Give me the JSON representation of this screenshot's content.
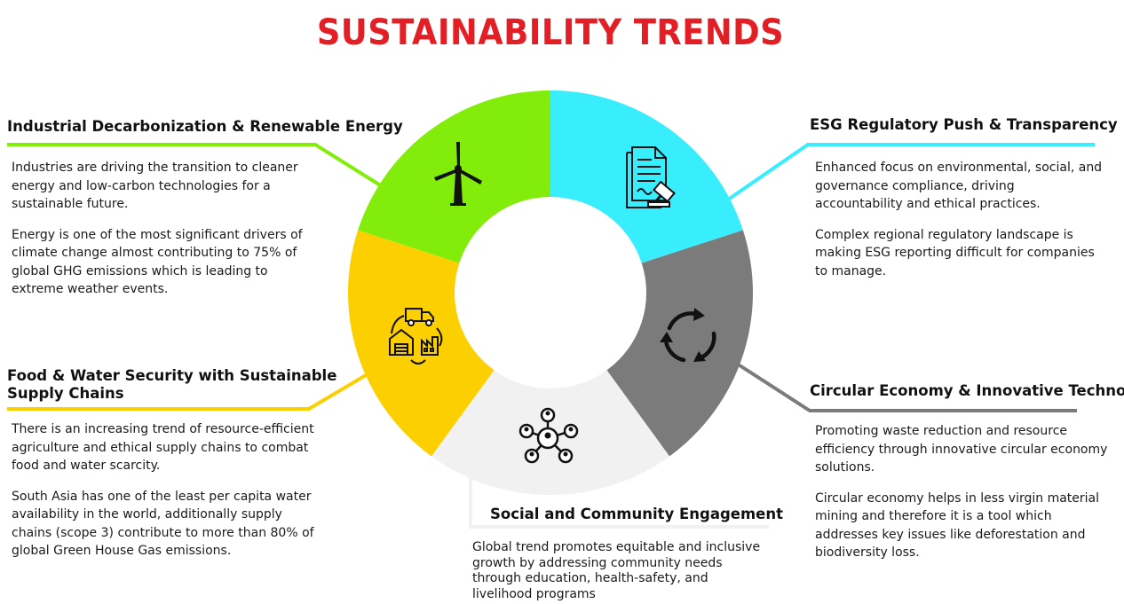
{
  "title": "SUSTAINABILITY TRENDS",
  "colors": {
    "title": "#e31e24",
    "industrial": "#82ec0a",
    "esg": "#38eefc",
    "circular": "#7b7b7b",
    "social": "#f1f1f1",
    "food": "#fcd000"
  },
  "sections": {
    "industrial": {
      "heading": "Industrial Decarbonization & Renewable Energy",
      "icon": "wind-turbine-icon",
      "paragraphs": [
        "Industries are driving the transition to cleaner energy and low-carbon technologies for a sustainable future.",
        "Energy is one of the most significant drivers of climate change almost contributing to 75% of global GHG emissions which is leading to extreme weather events."
      ]
    },
    "esg": {
      "heading": "ESG Regulatory Push & Transparency",
      "icon": "regulation-document-gavel-icon",
      "paragraphs": [
        "Enhanced focus on environmental, social, and governance compliance, driving accountability and ethical practices.",
        "Complex regional regulatory landscape is making ESG reporting difficult  for companies to manage."
      ]
    },
    "circular": {
      "heading": "Circular Economy & Innovative Technology",
      "icon": "recycle-arrows-icon",
      "paragraphs": [
        "Promoting waste reduction and resource efficiency through innovative circular economy solutions.",
        "Circular economy helps in less virgin material mining and therefore it is a tool which addresses key issues like deforestation and biodiversity loss."
      ]
    },
    "social": {
      "heading": "Social and Community Engagement",
      "icon": "community-network-icon",
      "paragraphs": [
        "Global trend promotes equitable and inclusive growth by addressing community needs through education, health-safety, and livelihood programs"
      ]
    },
    "food": {
      "heading_line1": "Food & Water Security with Sustainable",
      "heading_line2": "Supply Chains",
      "icon": "supply-chain-icon",
      "paragraphs": [
        "There is an increasing trend of resource-efficient agriculture and ethical supply chains to combat food and water scarcity.",
        "South Asia has one of the least per capita water availability in the world, additionally supply chains (scope 3) contribute to more than 80% of global Green House Gas emissions."
      ]
    }
  }
}
